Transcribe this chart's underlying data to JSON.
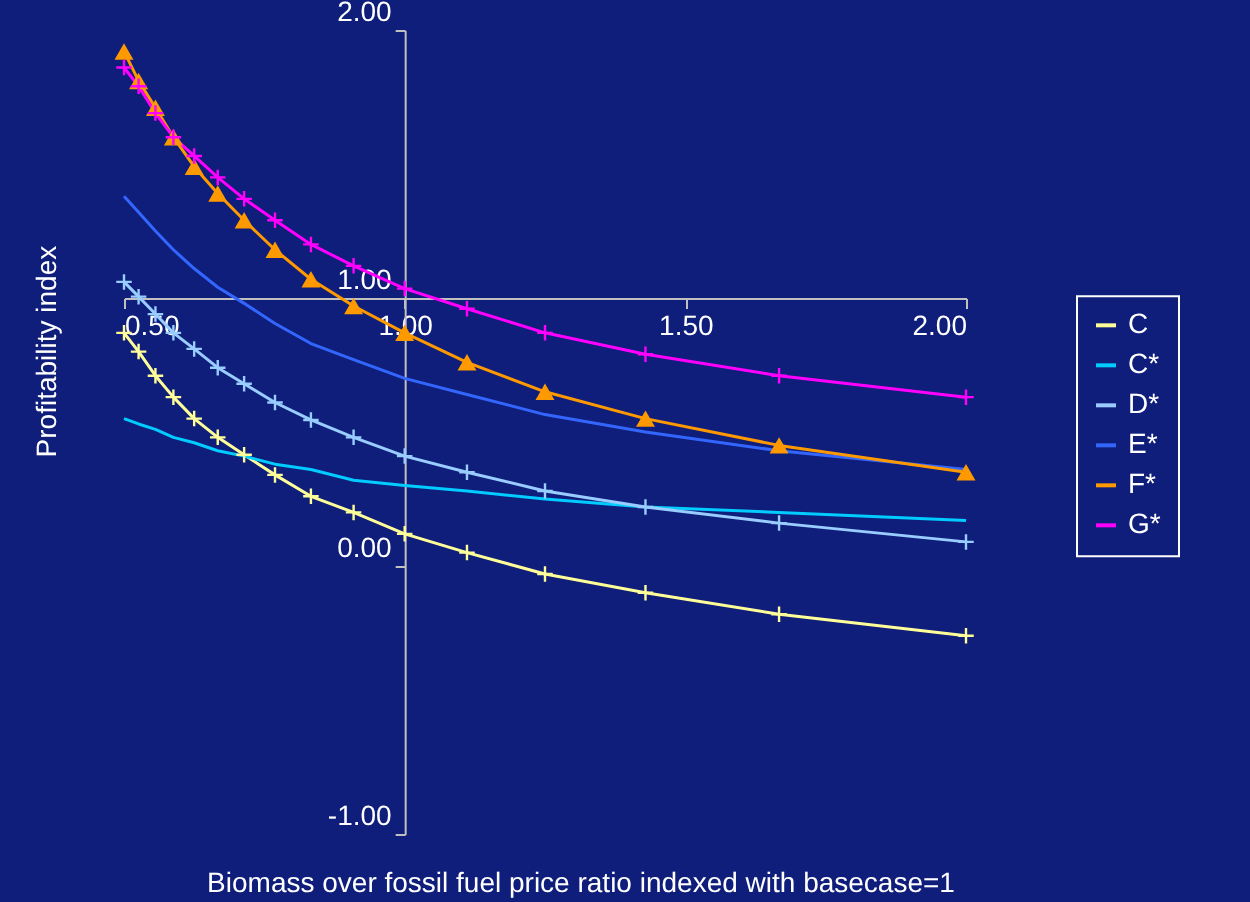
{
  "chart_data": {
    "type": "line",
    "xlabel": "Biomass over fossil fuel price ratio indexed with basecase=1",
    "ylabel": "Profitability index",
    "x": [
      0.5,
      0.526,
      0.556,
      0.588,
      0.625,
      0.667,
      0.714,
      0.769,
      0.833,
      0.909,
      1.0,
      1.111,
      1.25,
      1.429,
      1.667,
      2.0
    ],
    "series": [
      {
        "name": "C",
        "color": "#ffff99",
        "marker": "cross",
        "values": [
          0.87,
          0.8,
          0.71,
          0.63,
          0.55,
          0.48,
          0.415,
          0.34,
          0.26,
          0.2,
          0.12,
          0.05,
          -0.03,
          -0.1,
          -0.18,
          -0.26
        ]
      },
      {
        "name": "C*",
        "color": "#00ccff",
        "marker": "none",
        "values": [
          0.55,
          0.53,
          0.51,
          0.48,
          0.46,
          0.43,
          0.41,
          0.38,
          0.36,
          0.32,
          0.3,
          0.28,
          0.25,
          0.22,
          0.2,
          0.17
        ]
      },
      {
        "name": "D*",
        "color": "#99ccff",
        "marker": "cross",
        "values": [
          1.06,
          1.005,
          0.94,
          0.87,
          0.81,
          0.74,
          0.68,
          0.61,
          0.545,
          0.48,
          0.41,
          0.35,
          0.28,
          0.22,
          0.16,
          0.09
        ]
      },
      {
        "name": "E*",
        "color": "#3366ff",
        "marker": "none",
        "values": [
          1.38,
          1.32,
          1.25,
          1.18,
          1.11,
          1.04,
          0.98,
          0.905,
          0.83,
          0.77,
          0.7,
          0.64,
          0.565,
          0.5,
          0.43,
          0.36
        ]
      },
      {
        "name": "F*",
        "color": "#ff9900",
        "marker": "triangle",
        "values": [
          1.92,
          1.81,
          1.71,
          1.6,
          1.49,
          1.39,
          1.29,
          1.18,
          1.07,
          0.97,
          0.87,
          0.76,
          0.65,
          0.55,
          0.45,
          0.35
        ]
      },
      {
        "name": "G*",
        "color": "#ff00ff",
        "marker": "cross",
        "values": [
          1.86,
          1.79,
          1.69,
          1.6,
          1.53,
          1.45,
          1.37,
          1.29,
          1.2,
          1.12,
          1.035,
          0.96,
          0.87,
          0.79,
          0.71,
          0.63
        ]
      }
    ],
    "xlim": [
      0.5,
      2.0
    ],
    "xticks": [
      {
        "value": 0.5,
        "label": "0.50"
      },
      {
        "value": 1.0,
        "label": "1.00"
      },
      {
        "value": 1.5,
        "label": "1.50"
      },
      {
        "value": 2.0,
        "label": "2.00"
      }
    ],
    "ylim": [
      -1.0,
      2.0
    ],
    "yticks": [
      {
        "value": -1.0,
        "label": "-1.00"
      },
      {
        "value": 0.0,
        "label": "0.00"
      },
      {
        "value": 1.0,
        "label": "1.00"
      },
      {
        "value": 2.0,
        "label": "2.00"
      }
    ],
    "grid": false,
    "legend": "right",
    "line_style": "solid"
  }
}
